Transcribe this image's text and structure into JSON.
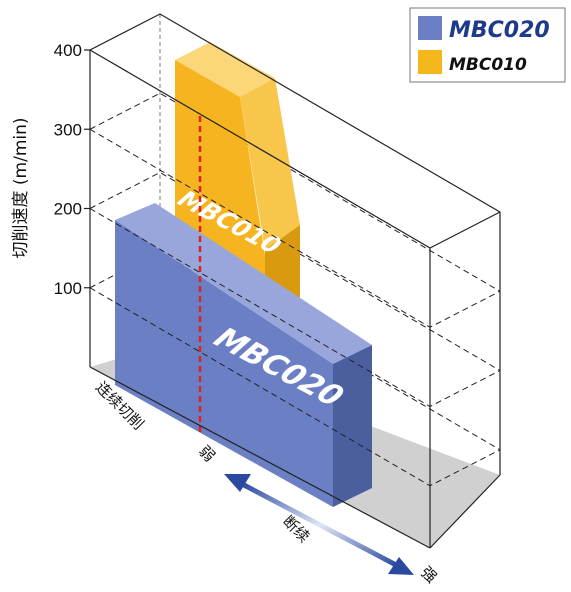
{
  "chart_data": {
    "type": "bar",
    "style": "3d-block",
    "y_axis": {
      "label": "切削速度 (m/min)",
      "ticks": [
        100,
        200,
        300,
        400
      ],
      "ylim": [
        0,
        400
      ]
    },
    "x_axis": {
      "label": "断续",
      "start_label": "连续切削",
      "weak_label": "弱",
      "strong_label": "强"
    },
    "series": [
      {
        "name": "MBC020",
        "color": "#6b7fc4",
        "speed_max": 190,
        "interrupted_range": [
          0,
          1.0
        ]
      },
      {
        "name": "MBC010",
        "color": "#f5b81c",
        "speed_max": 385,
        "interrupted_range": [
          0,
          0.55
        ]
      }
    ],
    "reference_line": {
      "color": "#e02020",
      "style": "dashed"
    },
    "legend": {
      "position": "top-right",
      "items": [
        {
          "label": "MBC020",
          "color": "#6b7fc4",
          "text_color": "#1e3a8a"
        },
        {
          "label": "MBC010",
          "color": "#f5b81c",
          "text_color": "#111111"
        }
      ]
    }
  }
}
